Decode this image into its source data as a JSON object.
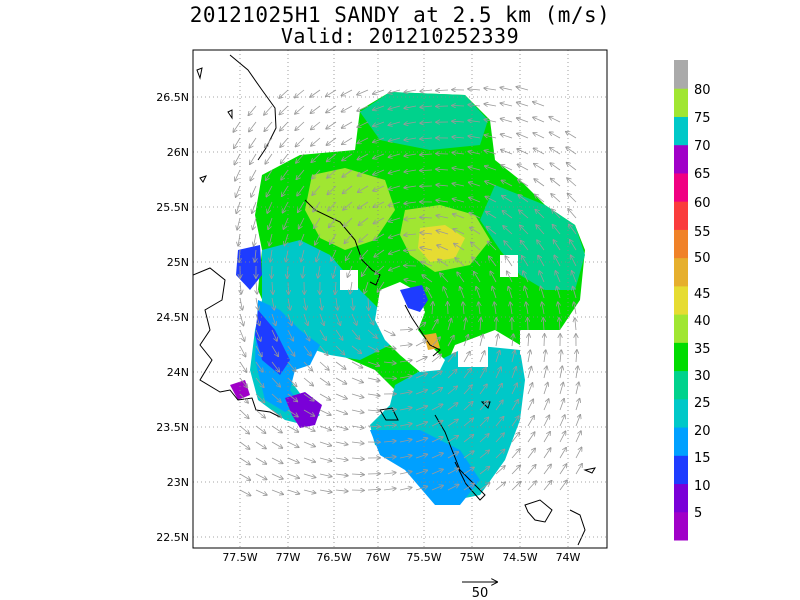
{
  "title": "20121025H1 SANDY at 2.5 km (m/s)",
  "subtitle": "Valid: 201210252339",
  "map": {
    "x_ticks": [
      "77.5W",
      "77W",
      "76.5W",
      "76W",
      "75.5W",
      "75W",
      "74.5W",
      "74W"
    ],
    "y_ticks": [
      "26.5N",
      "26N",
      "25.5N",
      "25N",
      "24.5N",
      "24N",
      "23.5N",
      "23N",
      "22.5N"
    ],
    "grid": true
  },
  "colorbar": {
    "labels": [
      "5",
      "10",
      "15",
      "20",
      "25",
      "30",
      "35",
      "40",
      "45",
      "50",
      "55",
      "60",
      "65",
      "70",
      "75",
      "80"
    ],
    "colors": [
      "#a000c8",
      "#7a00d8",
      "#1e3cff",
      "#00a0ff",
      "#00c8c8",
      "#00d28c",
      "#00dc00",
      "#a0e632",
      "#e6dc32",
      "#e6af2d",
      "#f08228",
      "#fa3c3c",
      "#f00082",
      "#a000c8",
      "#00c8c8",
      "#a0e632",
      "#aaaaaa"
    ]
  },
  "vector_scale": {
    "label": "50"
  }
}
